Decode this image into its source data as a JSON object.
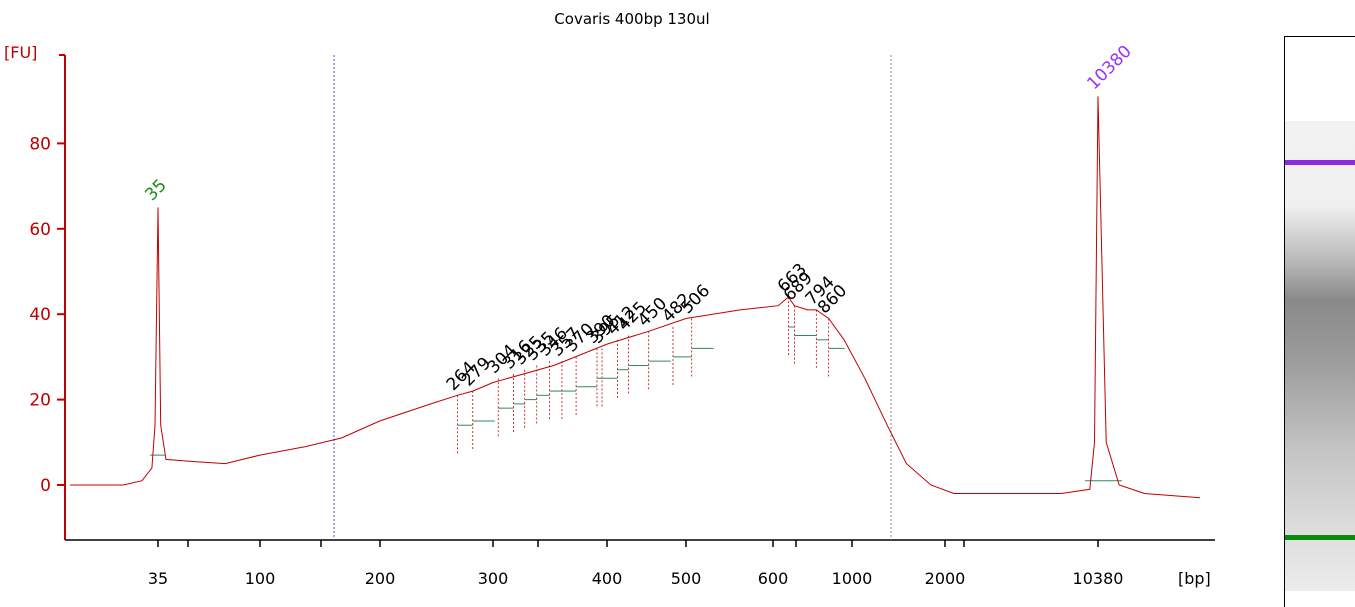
{
  "chart_data": {
    "type": "line",
    "title": "Covaris 400bp 130ul",
    "ylabel": "[FU]",
    "xlabel": "[bp]",
    "ylim": [
      -12,
      97
    ],
    "y_ticks": [
      0,
      20,
      40,
      60,
      80
    ],
    "x_tick_labels": [
      "35",
      "100",
      "200",
      "300",
      "400",
      "500",
      "600",
      "1000",
      "2000",
      "10380"
    ],
    "colors": {
      "trace": "#c00000",
      "axis": "#c00000",
      "lower_marker": "#1a8a1a",
      "upper_marker": "#9b30ff",
      "peak_label": "#000000",
      "baseline": "#2e8b57",
      "region_line": "#5555cc"
    },
    "region_lines_bp": [
      160,
      1300
    ],
    "marker_peaks": [
      {
        "label": "35",
        "bp": 35,
        "fu": 65
      },
      {
        "label": "10380",
        "bp": 10380,
        "fu": 91
      }
    ],
    "peaks": [
      {
        "label": "264",
        "bp": 264,
        "fu": 21
      },
      {
        "label": "279",
        "bp": 279,
        "fu": 22
      },
      {
        "label": "304",
        "bp": 304,
        "fu": 25
      },
      {
        "label": "316",
        "bp": 316,
        "fu": 26
      },
      {
        "label": "325",
        "bp": 325,
        "fu": 27
      },
      {
        "label": "335",
        "bp": 335,
        "fu": 28
      },
      {
        "label": "346",
        "bp": 346,
        "fu": 29
      },
      {
        "label": "357",
        "bp": 357,
        "fu": 29
      },
      {
        "label": "370",
        "bp": 370,
        "fu": 30
      },
      {
        "label": "390",
        "bp": 390,
        "fu": 32
      },
      {
        "label": "395",
        "bp": 395,
        "fu": 32
      },
      {
        "label": "412",
        "bp": 412,
        "fu": 34
      },
      {
        "label": "425",
        "bp": 425,
        "fu": 35
      },
      {
        "label": "450",
        "bp": 450,
        "fu": 36
      },
      {
        "label": "482",
        "bp": 482,
        "fu": 37
      },
      {
        "label": "506",
        "bp": 506,
        "fu": 39
      },
      {
        "label": "663",
        "bp": 663,
        "fu": 44
      },
      {
        "label": "689",
        "bp": 689,
        "fu": 42
      },
      {
        "label": "794",
        "bp": 794,
        "fu": 41
      },
      {
        "label": "860",
        "bp": 860,
        "fu": 39
      }
    ],
    "trace": [
      {
        "bp": 15,
        "fu": 0
      },
      {
        "bp": 25,
        "fu": 0
      },
      {
        "bp": 30,
        "fu": 1
      },
      {
        "bp": 33,
        "fu": 4
      },
      {
        "bp": 34,
        "fu": 14
      },
      {
        "bp": 35,
        "fu": 65
      },
      {
        "bp": 36,
        "fu": 14
      },
      {
        "bp": 38,
        "fu": 6
      },
      {
        "bp": 50,
        "fu": 5.5
      },
      {
        "bp": 70,
        "fu": 5
      },
      {
        "bp": 100,
        "fu": 7
      },
      {
        "bp": 130,
        "fu": 9
      },
      {
        "bp": 160,
        "fu": 11
      },
      {
        "bp": 200,
        "fu": 15
      },
      {
        "bp": 240,
        "fu": 19
      },
      {
        "bp": 264,
        "fu": 21
      },
      {
        "bp": 279,
        "fu": 22
      },
      {
        "bp": 300,
        "fu": 24
      },
      {
        "bp": 350,
        "fu": 28
      },
      {
        "bp": 400,
        "fu": 33
      },
      {
        "bp": 450,
        "fu": 36
      },
      {
        "bp": 500,
        "fu": 39
      },
      {
        "bp": 560,
        "fu": 41
      },
      {
        "bp": 620,
        "fu": 42
      },
      {
        "bp": 663,
        "fu": 44
      },
      {
        "bp": 689,
        "fu": 42
      },
      {
        "bp": 750,
        "fu": 41
      },
      {
        "bp": 794,
        "fu": 41
      },
      {
        "bp": 860,
        "fu": 39
      },
      {
        "bp": 950,
        "fu": 34
      },
      {
        "bp": 1100,
        "fu": 25
      },
      {
        "bp": 1300,
        "fu": 14
      },
      {
        "bp": 1500,
        "fu": 5
      },
      {
        "bp": 1800,
        "fu": 0
      },
      {
        "bp": 2200,
        "fu": -2
      },
      {
        "bp": 4000,
        "fu": -2
      },
      {
        "bp": 7000,
        "fu": -2
      },
      {
        "bp": 9500,
        "fu": -1
      },
      {
        "bp": 10000,
        "fu": 10
      },
      {
        "bp": 10380,
        "fu": 91
      },
      {
        "bp": 10800,
        "fu": 10
      },
      {
        "bp": 11500,
        "fu": 0
      },
      {
        "bp": 13000,
        "fu": -2
      },
      {
        "bp": 17000,
        "fu": -3
      }
    ]
  }
}
